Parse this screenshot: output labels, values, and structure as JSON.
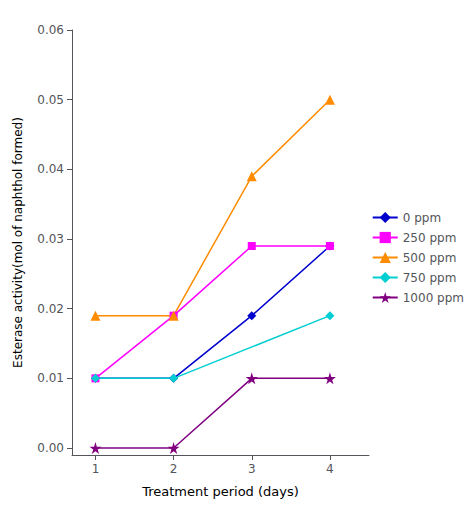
{
  "chart_data": {
    "type": "line",
    "xlabel": "Treatment period (days)",
    "ylabel": "Esterase activity(mol of naphthol formed)",
    "series": [
      {
        "name": "0 ppm",
        "x": [
          1,
          2,
          3,
          4
        ],
        "values": [
          0.01,
          0.01,
          0.019,
          0.029
        ],
        "color": "#0000CD",
        "marker": "diamond"
      },
      {
        "name": "250 ppm",
        "x": [
          1,
          2,
          3,
          4
        ],
        "values": [
          0.01,
          0.019,
          0.029,
          0.029
        ],
        "color": "#FF00FF",
        "marker": "square"
      },
      {
        "name": "500 ppm",
        "x": [
          1,
          2,
          3,
          4
        ],
        "values": [
          0.019,
          0.019,
          0.039,
          0.05
        ],
        "color": "#FF8C00",
        "marker": "triangle"
      },
      {
        "name": "750 ppm",
        "x": [
          1,
          2,
          4
        ],
        "values": [
          0.01,
          0.01,
          0.019
        ],
        "color": "#00CED1",
        "marker": "diamond"
      },
      {
        "name": "1000 ppm",
        "x": [
          1,
          2,
          3,
          4
        ],
        "values": [
          0.0,
          0.0,
          0.01,
          0.01
        ],
        "color": "#800080",
        "marker": "star"
      }
    ],
    "xlim": [
      0.7,
      4.5
    ],
    "xticks": [
      1,
      2,
      3,
      4
    ],
    "ylim": [
      -0.001,
      0.06
    ],
    "yticks": [
      {
        "value": 0,
        "label": "0.00"
      },
      0.01,
      0.02,
      0.03,
      0.04,
      0.05,
      0.06
    ],
    "grid": false,
    "legend": "right"
  }
}
